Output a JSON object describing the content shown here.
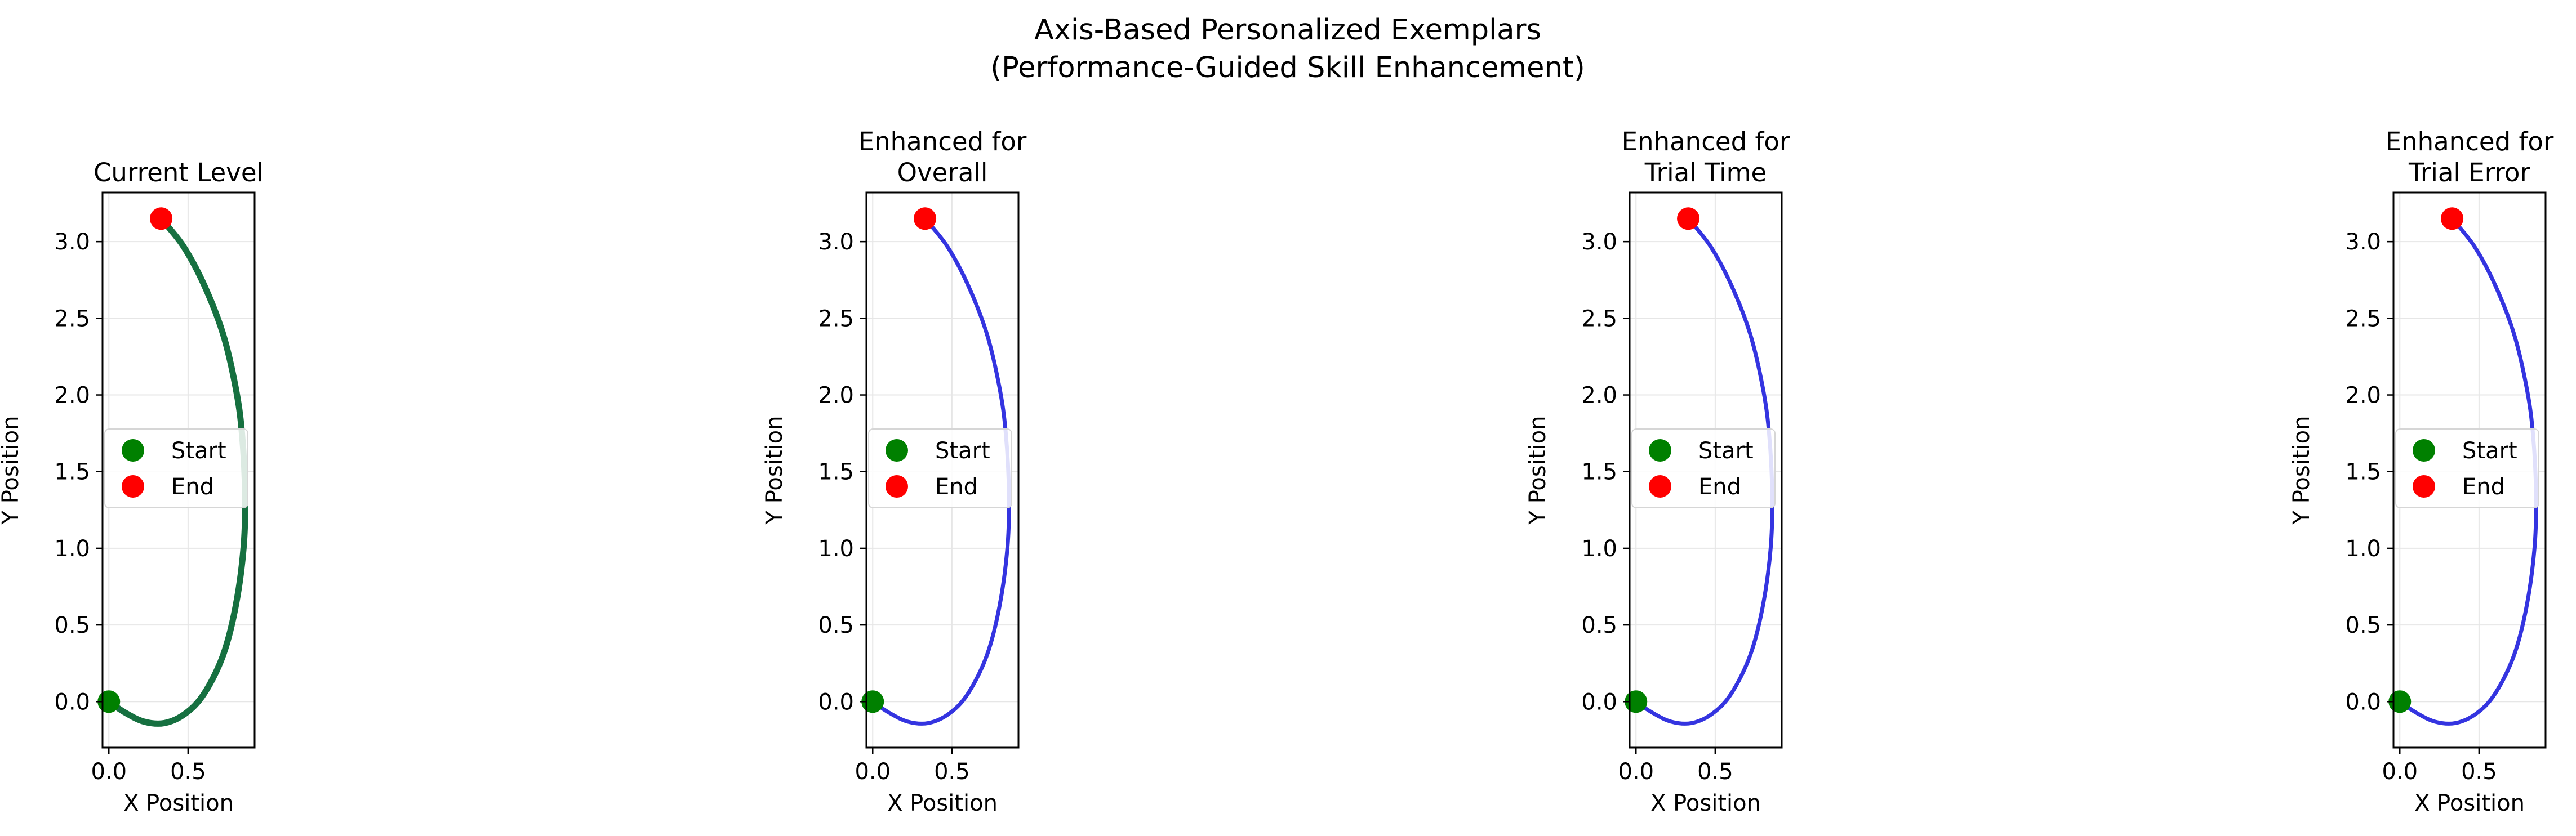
{
  "figure": {
    "title_line1": "Axis-Based Personalized Exemplars",
    "title_line2": "(Performance-Guided Skill Enhancement)"
  },
  "colors": {
    "current": "#167040",
    "enhanced": "#3434e0",
    "start_marker": "#008000",
    "end_marker": "#ff0000",
    "grid": "#e6e6e6"
  },
  "chart_data": [
    {
      "type": "line",
      "title": [
        "Current Level"
      ],
      "xlabel": "X Position",
      "ylabel": "Y Position",
      "xlim": [
        -0.04,
        0.92
      ],
      "ylim": [
        -0.3,
        3.32
      ],
      "xticks": [
        0.0,
        0.5
      ],
      "xtick_labels": [
        "0.0",
        "0.5"
      ],
      "yticks": [
        0.0,
        0.5,
        1.0,
        1.5,
        2.0,
        2.5,
        3.0
      ],
      "ytick_labels": [
        "0.0",
        "0.5",
        "1.0",
        "1.5",
        "2.0",
        "2.5",
        "3.0"
      ],
      "grid": true,
      "legend": {
        "placement": "center-left",
        "entries": [
          "Start",
          "End"
        ]
      },
      "series": [
        {
          "color_key": "current",
          "points": [
            [
              0.0,
              0.0
            ],
            [
              0.1,
              -0.07
            ],
            [
              0.22,
              -0.13
            ],
            [
              0.35,
              -0.14
            ],
            [
              0.48,
              -0.08
            ],
            [
              0.6,
              0.05
            ],
            [
              0.72,
              0.3
            ],
            [
              0.8,
              0.62
            ],
            [
              0.85,
              1.0
            ],
            [
              0.86,
              1.35
            ],
            [
              0.84,
              1.75
            ],
            [
              0.8,
              2.05
            ],
            [
              0.72,
              2.4
            ],
            [
              0.6,
              2.72
            ],
            [
              0.47,
              2.97
            ],
            [
              0.33,
              3.15
            ]
          ]
        }
      ],
      "start": [
        0.0,
        0.0
      ],
      "end": [
        0.33,
        3.15
      ]
    },
    {
      "type": "line",
      "title": [
        "Enhanced for",
        "Overall"
      ],
      "xlabel": "X Position",
      "ylabel": "Y Position",
      "xlim": [
        -0.04,
        0.92
      ],
      "ylim": [
        -0.3,
        3.32
      ],
      "xticks": [
        0.0,
        0.5
      ],
      "xtick_labels": [
        "0.0",
        "0.5"
      ],
      "yticks": [
        0.0,
        0.5,
        1.0,
        1.5,
        2.0,
        2.5,
        3.0
      ],
      "ytick_labels": [
        "0.0",
        "0.5",
        "1.0",
        "1.5",
        "2.0",
        "2.5",
        "3.0"
      ],
      "grid": true,
      "legend": {
        "placement": "center-left",
        "entries": [
          "Start",
          "End"
        ]
      },
      "series": [
        {
          "color_key": "enhanced",
          "points": [
            [
              0.0,
              0.0
            ],
            [
              0.1,
              -0.07
            ],
            [
              0.22,
              -0.13
            ],
            [
              0.35,
              -0.14
            ],
            [
              0.48,
              -0.08
            ],
            [
              0.6,
              0.05
            ],
            [
              0.72,
              0.3
            ],
            [
              0.8,
              0.62
            ],
            [
              0.85,
              1.0
            ],
            [
              0.86,
              1.35
            ],
            [
              0.84,
              1.75
            ],
            [
              0.8,
              2.05
            ],
            [
              0.72,
              2.4
            ],
            [
              0.6,
              2.72
            ],
            [
              0.47,
              2.97
            ],
            [
              0.33,
              3.15
            ]
          ]
        }
      ],
      "start": [
        0.0,
        0.0
      ],
      "end": [
        0.33,
        3.15
      ]
    },
    {
      "type": "line",
      "title": [
        "Enhanced for",
        "Trial Time"
      ],
      "xlabel": "X Position",
      "ylabel": "Y Position",
      "xlim": [
        -0.04,
        0.92
      ],
      "ylim": [
        -0.3,
        3.32
      ],
      "xticks": [
        0.0,
        0.5
      ],
      "xtick_labels": [
        "0.0",
        "0.5"
      ],
      "yticks": [
        0.0,
        0.5,
        1.0,
        1.5,
        2.0,
        2.5,
        3.0
      ],
      "ytick_labels": [
        "0.0",
        "0.5",
        "1.0",
        "1.5",
        "2.0",
        "2.5",
        "3.0"
      ],
      "grid": true,
      "legend": {
        "placement": "center-left",
        "entries": [
          "Start",
          "End"
        ]
      },
      "series": [
        {
          "color_key": "enhanced",
          "points": [
            [
              0.0,
              0.0
            ],
            [
              0.1,
              -0.07
            ],
            [
              0.22,
              -0.13
            ],
            [
              0.35,
              -0.14
            ],
            [
              0.48,
              -0.08
            ],
            [
              0.6,
              0.05
            ],
            [
              0.72,
              0.3
            ],
            [
              0.8,
              0.62
            ],
            [
              0.85,
              1.0
            ],
            [
              0.86,
              1.35
            ],
            [
              0.84,
              1.75
            ],
            [
              0.8,
              2.05
            ],
            [
              0.72,
              2.4
            ],
            [
              0.6,
              2.72
            ],
            [
              0.47,
              2.97
            ],
            [
              0.33,
              3.15
            ]
          ]
        }
      ],
      "start": [
        0.0,
        0.0
      ],
      "end": [
        0.33,
        3.15
      ]
    },
    {
      "type": "line",
      "title": [
        "Enhanced for",
        "Trial Error"
      ],
      "xlabel": "X Position",
      "ylabel": "Y Position",
      "xlim": [
        -0.04,
        0.92
      ],
      "ylim": [
        -0.3,
        3.32
      ],
      "xticks": [
        0.0,
        0.5
      ],
      "xtick_labels": [
        "0.0",
        "0.5"
      ],
      "yticks": [
        0.0,
        0.5,
        1.0,
        1.5,
        2.0,
        2.5,
        3.0
      ],
      "ytick_labels": [
        "0.0",
        "0.5",
        "1.0",
        "1.5",
        "2.0",
        "2.5",
        "3.0"
      ],
      "grid": true,
      "legend": {
        "placement": "center-left",
        "entries": [
          "Start",
          "End"
        ]
      },
      "series": [
        {
          "color_key": "enhanced",
          "points": [
            [
              0.0,
              0.0
            ],
            [
              0.1,
              -0.07
            ],
            [
              0.22,
              -0.13
            ],
            [
              0.35,
              -0.14
            ],
            [
              0.48,
              -0.08
            ],
            [
              0.6,
              0.05
            ],
            [
              0.72,
              0.3
            ],
            [
              0.8,
              0.62
            ],
            [
              0.85,
              1.0
            ],
            [
              0.86,
              1.35
            ],
            [
              0.84,
              1.75
            ],
            [
              0.8,
              2.05
            ],
            [
              0.72,
              2.4
            ],
            [
              0.6,
              2.72
            ],
            [
              0.47,
              2.97
            ],
            [
              0.33,
              3.15
            ]
          ]
        }
      ],
      "start": [
        0.0,
        0.0
      ],
      "end": [
        0.33,
        3.15
      ]
    }
  ]
}
